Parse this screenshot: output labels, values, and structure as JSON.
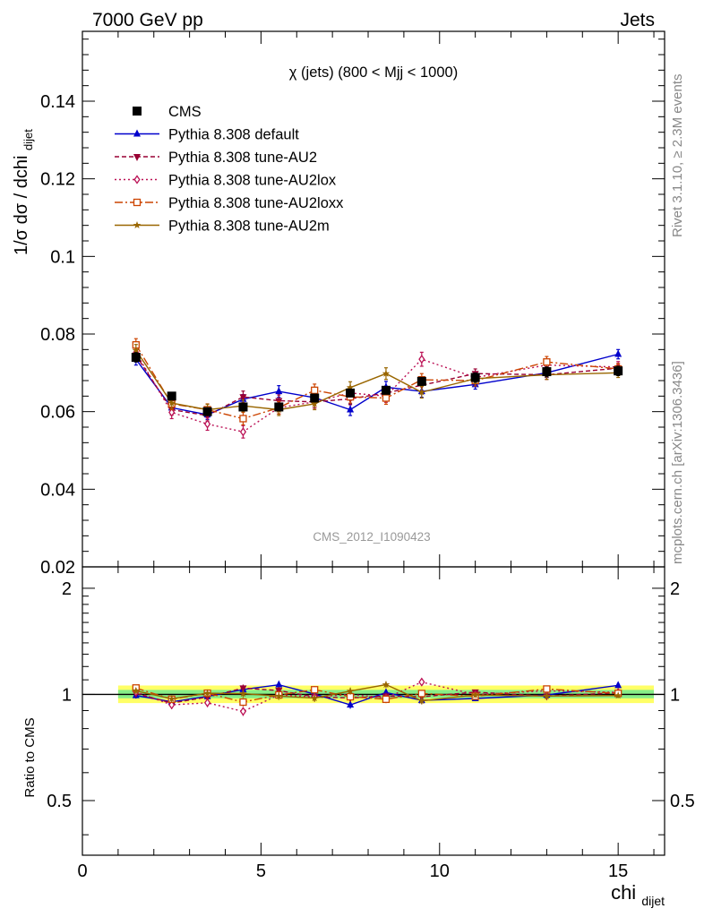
{
  "header": {
    "left_label": "7000 GeV pp",
    "right_label": "Jets"
  },
  "side_labels": {
    "rivet": "Rivet 3.1.10, ≥ 2.3M events",
    "mcplots": "mcplots.cern.ch [arXiv:1306.3436]"
  },
  "chart_data": [
    {
      "type": "line",
      "title": "χ (jets) (800 < Mjj < 1000)",
      "watermark": "CMS_2012_I1090423",
      "ylabel": "1/σ dσ / dchi",
      "ylabel_sub": "dijet",
      "xlim": [
        0,
        16.3
      ],
      "ylim": [
        0.02,
        0.158
      ],
      "yticks": [
        0.02,
        0.04,
        0.06,
        0.08,
        0.1,
        0.12,
        0.14
      ],
      "ytick_labels": [
        "0.02",
        "0.04",
        "0.06",
        "0.08",
        "0.1",
        "0.12",
        "0.14"
      ],
      "x": [
        1.5,
        2.5,
        3.5,
        4.5,
        5.5,
        6.5,
        7.5,
        8.5,
        9.5,
        11,
        13,
        15
      ],
      "series": [
        {
          "name": "CMS",
          "color": "#000000",
          "marker": "square",
          "dash": "none",
          "values": [
            0.074,
            0.064,
            0.06,
            0.0612,
            0.0612,
            0.0635,
            0.0648,
            0.0655,
            0.0678,
            0.0688,
            0.0703,
            0.0705
          ]
        },
        {
          "name": "Pythia 8.308 default",
          "color": "#0000cc",
          "marker": "triangle-up",
          "dash": "none",
          "values": [
            0.0735,
            0.061,
            0.0592,
            0.0632,
            0.0652,
            0.0636,
            0.0605,
            0.0663,
            0.0652,
            0.067,
            0.07,
            0.0748
          ]
        },
        {
          "name": "Pythia 8.308 tune-AU2",
          "color": "#990033",
          "marker": "triangle-down",
          "dash": "5,3",
          "values": [
            0.0745,
            0.0605,
            0.059,
            0.0638,
            0.0628,
            0.0625,
            0.0633,
            0.0648,
            0.0668,
            0.0698,
            0.0695,
            0.0712
          ]
        },
        {
          "name": "Pythia 8.308 tune-AU2lox",
          "color": "#bb1155",
          "marker": "diamond-open",
          "dash": "2,3",
          "values": [
            0.0752,
            0.0598,
            0.0568,
            0.0548,
            0.061,
            0.0625,
            0.0648,
            0.064,
            0.0735,
            0.0688,
            0.072,
            0.0715
          ]
        },
        {
          "name": "Pythia 8.308 tune-AU2loxx",
          "color": "#cc4400",
          "marker": "square-open",
          "dash": "9,3,2,3",
          "values": [
            0.0772,
            0.062,
            0.0605,
            0.0582,
            0.061,
            0.0655,
            0.0638,
            0.0635,
            0.0682,
            0.068,
            0.0728,
            0.071
          ]
        },
        {
          "name": "Pythia 8.308 tune-AU2m",
          "color": "#996600",
          "marker": "star",
          "dash": "none",
          "values": [
            0.0758,
            0.0622,
            0.0605,
            0.0615,
            0.0605,
            0.062,
            0.0662,
            0.0698,
            0.065,
            0.0685,
            0.0695,
            0.07
          ]
        }
      ],
      "errors": [
        [
          0.0012,
          0.0008,
          0.0008,
          0.0008,
          0.0008,
          0.0008,
          0.0008,
          0.0008,
          0.001,
          0.0012,
          0.0012,
          0.0012
        ],
        [
          0.0015,
          0.0012,
          0.0012,
          0.0012,
          0.0015,
          0.0015,
          0.0015,
          0.0015,
          0.0015,
          0.0012,
          0.0012,
          0.0012
        ],
        [
          0.0015,
          0.0014,
          0.0014,
          0.0015,
          0.0015,
          0.0015,
          0.0015,
          0.0015,
          0.0015,
          0.0012,
          0.0012,
          0.0012
        ],
        [
          0.0016,
          0.0016,
          0.0016,
          0.0016,
          0.0016,
          0.0016,
          0.0016,
          0.0016,
          0.0018,
          0.0014,
          0.0014,
          0.0014
        ],
        [
          0.0016,
          0.0015,
          0.0015,
          0.0016,
          0.0016,
          0.0016,
          0.0016,
          0.0016,
          0.0016,
          0.0014,
          0.0014,
          0.0014
        ],
        [
          0.0015,
          0.0014,
          0.0014,
          0.0015,
          0.0015,
          0.0015,
          0.0015,
          0.0015,
          0.0015,
          0.0012,
          0.0012,
          0.0012
        ]
      ],
      "legend_position": "top-left",
      "grid": false
    },
    {
      "type": "line",
      "ylabel": "Ratio to CMS",
      "xlabel": "chi",
      "xlabel_sub": "dijet",
      "xlim": [
        0,
        16.3
      ],
      "ylim": [
        0.35,
        2.3
      ],
      "yscale": "log",
      "yticks": [
        0.5,
        1,
        2
      ],
      "ytick_labels": [
        "0.5",
        "1",
        "2"
      ],
      "xticks": [
        0,
        5,
        10,
        15
      ],
      "xtick_labels": [
        "0",
        "5",
        "10",
        "15"
      ],
      "band": {
        "x_from": 1.0,
        "x_to": 16.0,
        "outer": [
          0.945,
          1.06
        ],
        "inner": [
          0.975,
          1.03
        ],
        "outer_color": "#ffff66",
        "inner_color": "#88ee88"
      },
      "x": [
        1.5,
        2.5,
        3.5,
        4.5,
        5.5,
        6.5,
        7.5,
        8.5,
        9.5,
        11,
        13,
        15
      ],
      "series": [
        {
          "name": "Pythia 8.308 default",
          "values": [
            0.993,
            0.953,
            0.987,
            1.033,
            1.065,
            1.002,
            0.934,
            1.012,
            0.962,
            0.974,
            0.996,
            1.061
          ]
        },
        {
          "name": "Pythia 8.308 tune-AU2",
          "values": [
            1.007,
            0.945,
            0.983,
            1.042,
            1.026,
            0.984,
            0.977,
            0.989,
            0.985,
            1.015,
            0.989,
            1.01
          ]
        },
        {
          "name": "Pythia 8.308 tune-AU2lox",
          "values": [
            1.016,
            0.934,
            0.947,
            0.895,
            0.997,
            0.984,
            1.0,
            0.977,
            1.084,
            1.0,
            1.024,
            1.014
          ]
        },
        {
          "name": "Pythia 8.308 tune-AU2loxx",
          "values": [
            1.043,
            0.969,
            1.008,
            0.951,
            0.997,
            1.031,
            0.985,
            0.969,
            1.006,
            0.988,
            1.036,
            1.007
          ]
        },
        {
          "name": "Pythia 8.308 tune-AU2m",
          "values": [
            1.024,
            0.972,
            1.008,
            1.005,
            0.989,
            0.976,
            1.022,
            1.066,
            0.959,
            0.996,
            0.989,
            0.993
          ]
        }
      ]
    }
  ]
}
